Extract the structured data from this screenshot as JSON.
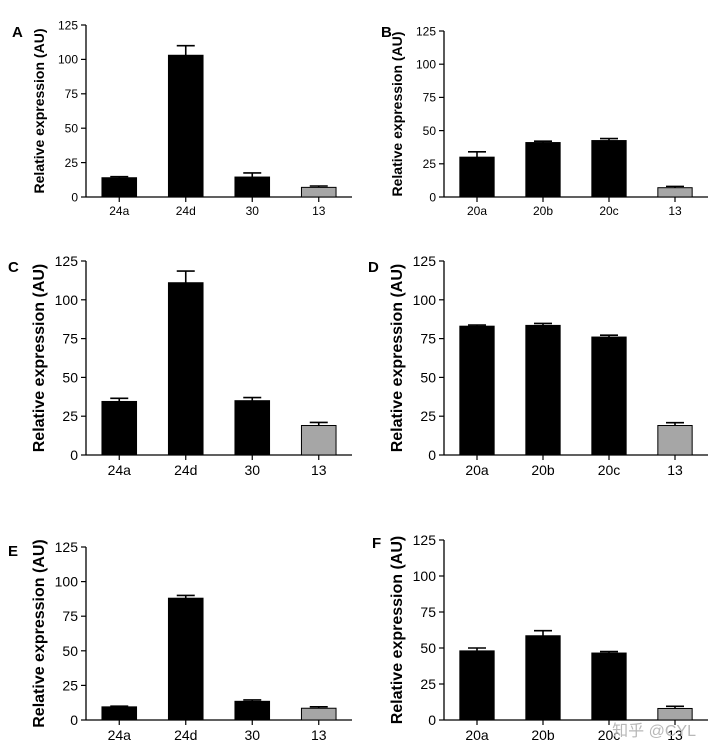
{
  "colors": {
    "bar_default": "#000000",
    "bar_reference": "#a6a6a6",
    "axis": "#000000"
  },
  "watermark": "知乎 @CYL",
  "chart_data": [
    {
      "panel_label": "A",
      "type": "bar",
      "ylabel": "Relative expression (AU)",
      "ylim": [
        0,
        125
      ],
      "yticks": [
        0,
        25,
        50,
        75,
        100,
        125
      ],
      "categories": [
        "24a",
        "24d",
        "30",
        "13"
      ],
      "values": [
        14,
        103,
        14.5,
        7
      ],
      "errors": [
        0.8,
        7,
        3,
        1
      ],
      "reference_category": "13"
    },
    {
      "panel_label": "B",
      "type": "bar",
      "ylabel": "Relative expression (AU)",
      "ylim": [
        0,
        125
      ],
      "yticks": [
        0,
        25,
        50,
        75,
        100,
        125
      ],
      "categories": [
        "20a",
        "20b",
        "20c",
        "13"
      ],
      "values": [
        30,
        41,
        42.5,
        7
      ],
      "errors": [
        4,
        1,
        1.5,
        1
      ],
      "reference_category": "13"
    },
    {
      "panel_label": "C",
      "type": "bar",
      "ylabel": "Relative expression (AU)",
      "ylim": [
        0,
        125
      ],
      "yticks": [
        0,
        25,
        50,
        75,
        100,
        125
      ],
      "categories": [
        "24a",
        "24d",
        "30",
        "13"
      ],
      "values": [
        34.5,
        111,
        35,
        19
      ],
      "errors": [
        2,
        7.5,
        2,
        2
      ],
      "reference_category": "13"
    },
    {
      "panel_label": "D",
      "type": "bar",
      "ylabel": "Relative expression (AU)",
      "ylim": [
        0,
        125
      ],
      "yticks": [
        0,
        25,
        50,
        75,
        100,
        125
      ],
      "categories": [
        "20a",
        "20b",
        "20c",
        "13"
      ],
      "values": [
        83,
        83.5,
        76,
        19
      ],
      "errors": [
        0.7,
        1.3,
        1.2,
        1.8
      ],
      "reference_category": "13"
    },
    {
      "panel_label": "E",
      "type": "bar",
      "ylabel": "Relative expression (AU)",
      "ylim": [
        0,
        125
      ],
      "yticks": [
        0,
        25,
        50,
        75,
        100,
        125
      ],
      "categories": [
        "24a",
        "24d",
        "30",
        "13"
      ],
      "values": [
        9.5,
        88,
        13.5,
        8.5
      ],
      "errors": [
        0.5,
        2,
        1,
        1
      ],
      "reference_category": "13"
    },
    {
      "panel_label": "F",
      "type": "bar",
      "ylabel": "Relative expression (AU)",
      "ylim": [
        0,
        125
      ],
      "yticks": [
        0,
        25,
        50,
        75,
        100,
        125
      ],
      "categories": [
        "20a",
        "20b",
        "20c",
        "13"
      ],
      "values": [
        48,
        58.5,
        46.5,
        8
      ],
      "errors": [
        2,
        3.5,
        1,
        1.5
      ],
      "reference_category": "13"
    }
  ]
}
